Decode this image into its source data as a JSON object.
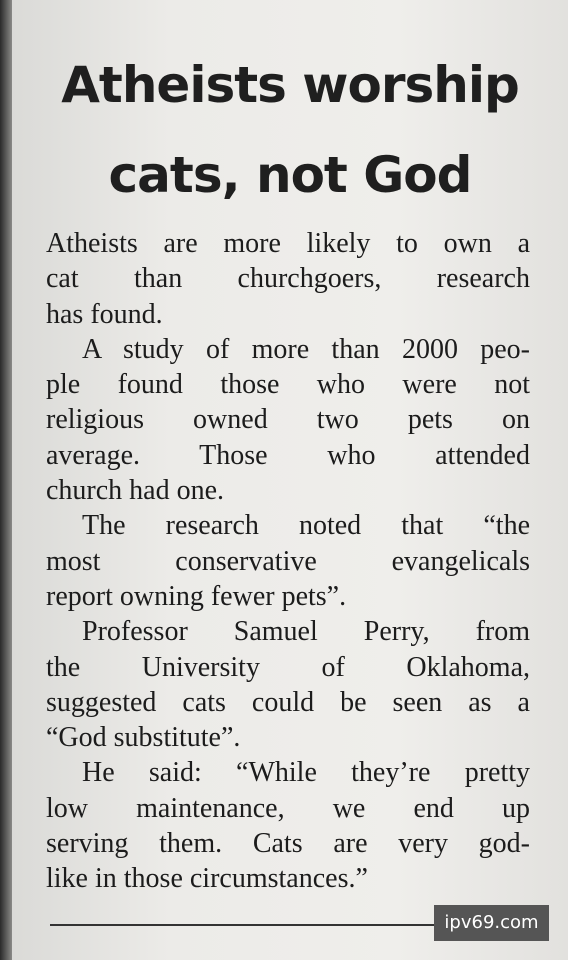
{
  "headline": [
    "Atheists worship",
    "cats, not God"
  ],
  "paragraphs": [
    [
      "Atheists are more likely to own a",
      "cat than churchgoers, research",
      "has found."
    ],
    [
      "A study of more than 2000 peo-",
      "ple found those who were not",
      "religious owned two pets on",
      "average. Those who attended",
      "church had one."
    ],
    [
      "The research noted that “the",
      "most conservative evangelicals",
      "report owning fewer pets”."
    ],
    [
      "Professor Samuel Perry, from",
      "the University of Oklahoma,",
      "suggested cats could be seen as a",
      "“God substitute”."
    ],
    [
      "He said: “While they’re pretty",
      "low maintenance, we end up",
      "serving them. Cats are very god-",
      "like in those circumstances.”"
    ]
  ],
  "watermark": "ipv69.com"
}
